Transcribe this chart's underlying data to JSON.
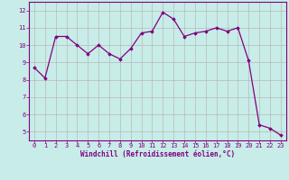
{
  "x": [
    0,
    1,
    2,
    3,
    4,
    5,
    6,
    7,
    8,
    9,
    10,
    11,
    12,
    13,
    14,
    15,
    16,
    17,
    18,
    19,
    20,
    21,
    22,
    23
  ],
  "y": [
    8.7,
    8.1,
    10.5,
    10.5,
    10.0,
    9.5,
    10.0,
    9.5,
    9.2,
    9.8,
    10.7,
    10.8,
    11.9,
    11.5,
    10.5,
    10.7,
    10.8,
    11.0,
    10.8,
    11.0,
    9.1,
    5.4,
    5.2,
    4.8
  ],
  "line_color": "#800080",
  "marker": "D",
  "markersize": 1.8,
  "linewidth": 0.9,
  "xlabel": "Windchill (Refroidissement éolien,°C)",
  "xlabel_fontsize": 5.5,
  "xlabel_fontweight": "bold",
  "ylabel_ticks": [
    5,
    6,
    7,
    8,
    9,
    10,
    11,
    12
  ],
  "xlim": [
    -0.5,
    23.5
  ],
  "ylim": [
    4.5,
    12.5
  ],
  "bg_color": "#c8ece8",
  "grid_color": "#b0b0b0",
  "tick_fontsize": 5.0,
  "spine_color": "#800080"
}
